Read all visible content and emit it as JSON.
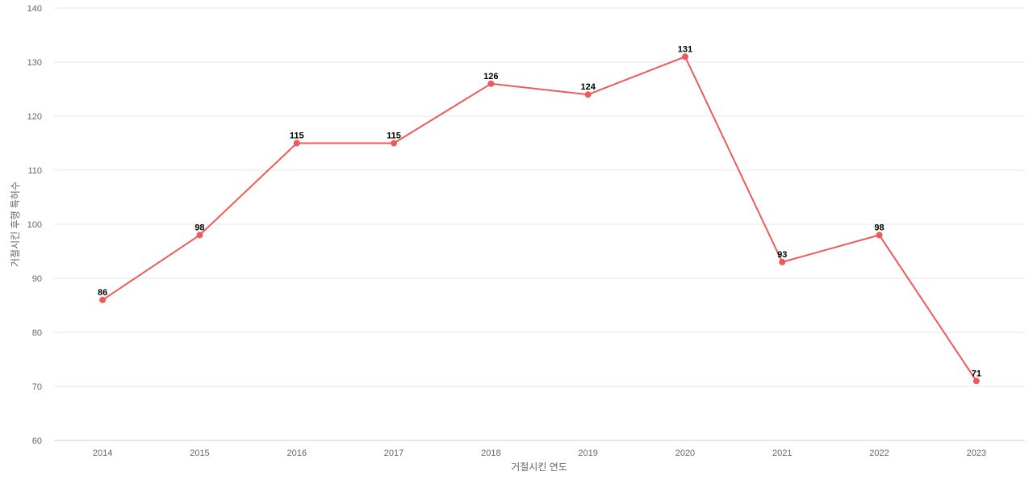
{
  "chart_data": {
    "type": "line",
    "title": "",
    "xlabel": "거절시킨 연도",
    "ylabel": "거절시킨 후행 특허수",
    "ylim": [
      60,
      140
    ],
    "yticks": [
      60,
      70,
      80,
      90,
      100,
      110,
      120,
      130,
      140
    ],
    "categories": [
      "2014",
      "2015",
      "2016",
      "2017",
      "2018",
      "2019",
      "2020",
      "2021",
      "2022",
      "2023"
    ],
    "series": [
      {
        "values": [
          86,
          98,
          115,
          115,
          126,
          124,
          131,
          93,
          98,
          71
        ]
      }
    ],
    "grid": true,
    "legend": "none",
    "colors": {
      "line": "#ee5a5a",
      "grid": "#e6e6e6",
      "axis_text": "#666666",
      "data_label": "#000000"
    }
  }
}
